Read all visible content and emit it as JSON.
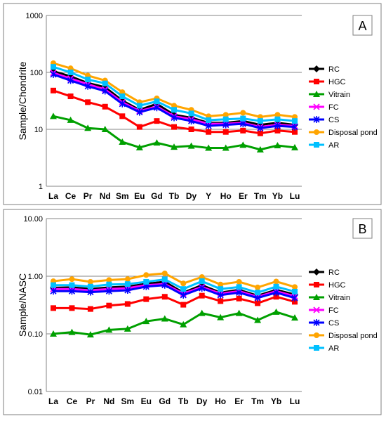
{
  "chart_data": [
    {
      "type": "line",
      "panel_label": "A",
      "ylabel": "Sample/Chondrite",
      "yscale": "log",
      "ylim": [
        1,
        1000
      ],
      "yticks": [
        "1",
        "10",
        "100",
        "1000"
      ],
      "grid": "horizontal",
      "legend_position": "right",
      "categories": [
        "La",
        "Ce",
        "Pr",
        "Nd",
        "Sm",
        "Eu",
        "Gd",
        "Tb",
        "Dy",
        "Y",
        "Ho",
        "Er",
        "Tm",
        "Yb",
        "Lu"
      ],
      "series": [
        {
          "name": "RC",
          "color": "#000000",
          "marker": "diamond",
          "values": [
            105,
            85,
            65,
            55,
            32,
            22,
            28,
            18,
            16,
            13,
            13,
            14,
            12,
            13,
            12
          ]
        },
        {
          "name": "HGC",
          "color": "#ff0000",
          "marker": "square",
          "values": [
            48,
            38,
            30,
            25,
            17,
            11,
            14,
            11,
            10,
            9,
            9,
            9.5,
            8.5,
            9.5,
            9
          ]
        },
        {
          "name": "Vitrain",
          "color": "#00a000",
          "marker": "triangle",
          "values": [
            17,
            14.5,
            10.5,
            10,
            6,
            4.8,
            5.8,
            4.9,
            5.1,
            4.7,
            4.7,
            5.3,
            4.4,
            5.2,
            4.8
          ]
        },
        {
          "name": "FC",
          "color": "#ff00ff",
          "marker": "x",
          "values": [
            98,
            78,
            62,
            50,
            30,
            21,
            25,
            17,
            15,
            12.5,
            12.5,
            13,
            11,
            12,
            11.5
          ]
        },
        {
          "name": "CS",
          "color": "#0000ff",
          "marker": "star",
          "values": [
            92,
            72,
            57,
            47,
            28,
            20,
            24,
            16,
            14,
            11.5,
            12,
            12.5,
            10.5,
            11.5,
            11
          ]
        },
        {
          "name": "Disposal pond",
          "color": "#ffa500",
          "marker": "circle",
          "values": [
            145,
            118,
            88,
            72,
            45,
            30,
            35,
            26,
            22,
            17,
            18,
            19.5,
            16.5,
            18,
            16.5
          ]
        },
        {
          "name": "AR",
          "color": "#00c0ff",
          "marker": "square",
          "values": [
            125,
            100,
            75,
            64,
            38,
            26,
            31,
            22,
            19,
            14.5,
            15,
            15.5,
            14,
            15,
            14
          ]
        }
      ]
    },
    {
      "type": "line",
      "panel_label": "B",
      "ylabel": "Sample/NASC",
      "yscale": "log",
      "ylim": [
        0.01,
        10
      ],
      "yticks": [
        "0.01",
        "0.10",
        "1.00",
        "10.00"
      ],
      "grid": "horizontal",
      "legend_position": "right",
      "categories": [
        "La",
        "Ce",
        "Pr",
        "Nd",
        "Sm",
        "Eu",
        "Gd",
        "Tb",
        "Dy",
        "Ho",
        "Er",
        "Tm",
        "Yb",
        "Lu"
      ],
      "series": [
        {
          "name": "RC",
          "color": "#000000",
          "marker": "diamond",
          "values": [
            0.63,
            0.64,
            0.6,
            0.64,
            0.66,
            0.74,
            0.8,
            0.52,
            0.7,
            0.52,
            0.58,
            0.46,
            0.58,
            0.48
          ]
        },
        {
          "name": "HGC",
          "color": "#ff0000",
          "marker": "square",
          "values": [
            0.28,
            0.28,
            0.27,
            0.31,
            0.33,
            0.4,
            0.44,
            0.32,
            0.46,
            0.37,
            0.41,
            0.34,
            0.44,
            0.36
          ]
        },
        {
          "name": "Vitrain",
          "color": "#00a000",
          "marker": "triangle",
          "values": [
            0.1,
            0.107,
            0.097,
            0.117,
            0.122,
            0.165,
            0.183,
            0.145,
            0.228,
            0.193,
            0.228,
            0.173,
            0.24,
            0.19
          ]
        },
        {
          "name": "FC",
          "color": "#ff00ff",
          "marker": "x",
          "values": [
            0.6,
            0.6,
            0.57,
            0.6,
            0.62,
            0.7,
            0.73,
            0.5,
            0.65,
            0.5,
            0.55,
            0.44,
            0.55,
            0.45
          ]
        },
        {
          "name": "CS",
          "color": "#0000ff",
          "marker": "star",
          "values": [
            0.55,
            0.55,
            0.53,
            0.55,
            0.57,
            0.66,
            0.7,
            0.47,
            0.62,
            0.47,
            0.52,
            0.42,
            0.52,
            0.42
          ]
        },
        {
          "name": "Disposal pond",
          "color": "#ffa500",
          "marker": "circle",
          "values": [
            0.82,
            0.89,
            0.8,
            0.86,
            0.89,
            1.05,
            1.12,
            0.75,
            0.97,
            0.72,
            0.8,
            0.64,
            0.81,
            0.65
          ]
        },
        {
          "name": "AR",
          "color": "#00c0ff",
          "marker": "square",
          "values": [
            0.7,
            0.7,
            0.66,
            0.72,
            0.73,
            0.8,
            0.88,
            0.6,
            0.82,
            0.6,
            0.65,
            0.52,
            0.66,
            0.54
          ]
        }
      ]
    }
  ]
}
